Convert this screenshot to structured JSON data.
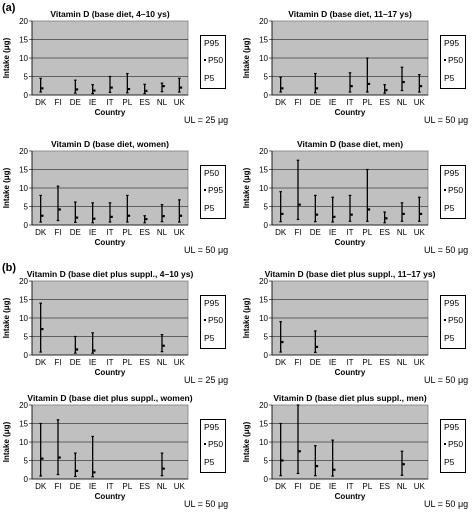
{
  "section_labels": [
    "(a)",
    "(b)"
  ],
  "common": {
    "xlabel": "Country",
    "ylabel": "Intake (μg)",
    "categories": [
      "DK",
      "FI",
      "DE",
      "IE",
      "IT",
      "PL",
      "ES",
      "NL",
      "UK"
    ],
    "yticks": [
      0,
      5,
      10,
      15,
      20
    ]
  },
  "chart_data": [
    {
      "type": "scatter",
      "title": "Vitamin D (base diet, 4–10 ys)",
      "xlabel": "Country",
      "ylabel": "Intake (μg)",
      "ylim": [
        0,
        20
      ],
      "legend": [
        "P95",
        "P50",
        "P5"
      ],
      "ul_note": "UL = 25 μg",
      "series": [
        {
          "name": "P5",
          "values": [
            0.8,
            null,
            0.5,
            0.4,
            0.7,
            0.6,
            0.4,
            0.9,
            0.8
          ]
        },
        {
          "name": "P50",
          "values": [
            1.8,
            null,
            1.5,
            1.2,
            2.0,
            1.6,
            1.1,
            2.4,
            2.0
          ]
        },
        {
          "name": "P95",
          "values": [
            4.5,
            null,
            4.0,
            2.8,
            5.0,
            5.8,
            2.9,
            3.2,
            4.5
          ]
        }
      ]
    },
    {
      "type": "scatter",
      "title": "Vitamin D (base diet, 11–17 ys)",
      "xlabel": "Country",
      "ylabel": "Intake (μg)",
      "ylim": [
        0,
        20
      ],
      "legend": [
        "P95",
        "P50",
        "P5"
      ],
      "ul_note": "UL = 50 μg",
      "series": [
        {
          "name": "P5",
          "values": [
            0.8,
            null,
            0.6,
            null,
            0.8,
            0.8,
            0.5,
            1.2,
            0.8
          ]
        },
        {
          "name": "P50",
          "values": [
            1.8,
            null,
            1.8,
            null,
            2.4,
            3.0,
            1.3,
            3.5,
            2.4
          ]
        },
        {
          "name": "P95",
          "values": [
            4.8,
            null,
            5.8,
            null,
            6.0,
            10.0,
            2.8,
            7.5,
            5.5
          ]
        }
      ]
    },
    {
      "type": "scatter",
      "title": "Vitamin D (base diet, women)",
      "xlabel": "Country",
      "ylabel": "Intake (μg)",
      "ylim": [
        0,
        20
      ],
      "legend": [
        "P50",
        "P95",
        "P5"
      ],
      "ul_note": "UL = 50 μg",
      "series": [
        {
          "name": "P5",
          "values": [
            0.8,
            1.2,
            0.7,
            0.6,
            0.8,
            0.8,
            0.6,
            0.9,
            0.8
          ]
        },
        {
          "name": "P50",
          "values": [
            2.5,
            4.2,
            2.0,
            1.7,
            2.2,
            2.5,
            1.6,
            2.4,
            2.5
          ]
        },
        {
          "name": "P95",
          "values": [
            8.0,
            10.5,
            6.2,
            6.0,
            6.0,
            8.0,
            2.5,
            5.5,
            6.8
          ]
        }
      ]
    },
    {
      "type": "scatter",
      "title": "Vitamin D (base diet, men)",
      "xlabel": "Country",
      "ylabel": "Intake (μg)",
      "ylim": [
        0,
        20
      ],
      "legend": [
        "P95",
        "P50",
        "P5"
      ],
      "ul_note": "UL = 50 μg",
      "series": [
        {
          "name": "P5",
          "values": [
            0.9,
            1.5,
            0.9,
            0.8,
            1.0,
            1.0,
            0.6,
            1.0,
            1.0
          ]
        },
        {
          "name": "P50",
          "values": [
            3.0,
            5.5,
            2.8,
            2.2,
            2.8,
            4.2,
            1.8,
            3.0,
            3.0
          ]
        },
        {
          "name": "P95",
          "values": [
            9.0,
            17.5,
            8.0,
            7.5,
            8.0,
            15.0,
            3.5,
            6.0,
            7.5
          ]
        }
      ]
    },
    {
      "type": "scatter",
      "title": "Vitamin D (base diet plus suppl., 4–10 ys)",
      "xlabel": "Country",
      "ylabel": "Intake (μg)",
      "ylim": [
        0,
        20
      ],
      "legend": [
        "P95",
        "P50",
        "P5"
      ],
      "ul_note": "UL = 25 μg",
      "series": [
        {
          "name": "P5",
          "values": [
            0.8,
            null,
            0.5,
            0.5,
            null,
            null,
            null,
            0.9,
            null
          ]
        },
        {
          "name": "P50",
          "values": [
            7.0,
            null,
            1.5,
            1.2,
            null,
            null,
            null,
            2.5,
            null
          ]
        },
        {
          "name": "P95",
          "values": [
            14.0,
            null,
            5.0,
            6.0,
            null,
            null,
            null,
            5.5,
            null
          ]
        }
      ]
    },
    {
      "type": "scatter",
      "title": "Vitamin D (base diet plus suppl., 11–17 ys)",
      "xlabel": "Country",
      "ylabel": "Intake (μg)",
      "ylim": [
        0,
        20
      ],
      "legend": [
        "P95",
        "P50",
        "P5"
      ],
      "ul_note": "UL = 50 μg",
      "series": [
        {
          "name": "P5",
          "values": [
            0.8,
            null,
            0.7,
            null,
            null,
            null,
            null,
            null,
            null
          ]
        },
        {
          "name": "P50",
          "values": [
            3.5,
            null,
            2.2,
            null,
            null,
            null,
            null,
            null,
            null
          ]
        },
        {
          "name": "P95",
          "values": [
            9.0,
            null,
            6.5,
            null,
            null,
            null,
            null,
            null,
            null
          ]
        }
      ]
    },
    {
      "type": "scatter",
      "title": "Vitamin D (base diet plus suppl., women)",
      "xlabel": "Country",
      "ylabel": "Intake (μg)",
      "ylim": [
        0,
        20
      ],
      "legend": [
        "P95",
        "P50",
        "P5"
      ],
      "ul_note": "UL = 50 μg",
      "series": [
        {
          "name": "P5",
          "values": [
            0.8,
            1.2,
            0.7,
            0.6,
            null,
            null,
            null,
            0.9,
            null
          ]
        },
        {
          "name": "P50",
          "values": [
            5.5,
            5.8,
            2.2,
            1.8,
            null,
            null,
            null,
            2.8,
            null
          ]
        },
        {
          "name": "P95",
          "values": [
            15.0,
            16.0,
            7.0,
            11.5,
            null,
            null,
            null,
            7.0,
            null
          ]
        }
      ]
    },
    {
      "type": "scatter",
      "title": "Vitamin D (base diet plus suppl., men)",
      "xlabel": "Country",
      "ylabel": "Intake (μg)",
      "ylim": [
        0,
        20
      ],
      "legend": [
        "P95",
        "P50",
        "P5"
      ],
      "ul_note": "UL = 50 μg",
      "series": [
        {
          "name": "P5",
          "values": [
            0.9,
            1.5,
            0.9,
            0.8,
            null,
            null,
            null,
            1.0,
            null
          ]
        },
        {
          "name": "P50",
          "values": [
            5.0,
            7.5,
            3.5,
            2.5,
            null,
            null,
            null,
            4.0,
            null
          ]
        },
        {
          "name": "P95",
          "values": [
            15.0,
            20.0,
            9.0,
            10.5,
            null,
            null,
            null,
            7.5,
            null
          ]
        }
      ]
    }
  ]
}
